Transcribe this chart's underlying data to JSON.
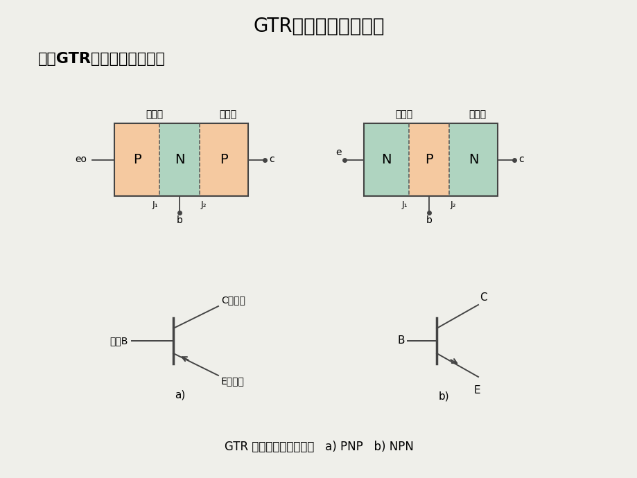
{
  "title": "GTR的结构与工作原理",
  "subtitle": "一．GTR的结构和工作原理",
  "bg_color": "#efefea",
  "p_color": "#f5c9a0",
  "n_color": "#afd4c0",
  "border_color": "#444444",
  "caption": "GTR 的结构示意图及符号   a) PNP   b) NPN"
}
